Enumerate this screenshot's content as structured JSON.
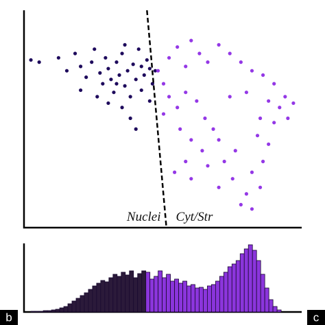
{
  "chart_data": [
    {
      "type": "scatter",
      "xlim": [
        0,
        100
      ],
      "ylim": [
        0,
        100
      ],
      "divider": {
        "x": [
          44,
          51
        ],
        "y": [
          100,
          0
        ]
      },
      "series": [
        {
          "name": "Nuclei",
          "color": "#1e0a5c",
          "x": [
            2,
            5,
            12,
            15,
            18,
            20,
            22,
            24,
            25,
            27,
            28,
            29,
            30,
            31,
            32,
            33,
            34,
            35,
            36,
            37,
            38,
            39,
            40,
            41,
            42,
            43,
            44,
            45,
            46,
            47,
            30,
            35,
            38,
            40,
            26,
            20,
            42,
            36,
            33,
            45
          ],
          "values": [
            77,
            76,
            78,
            72,
            80,
            74,
            69,
            76,
            82,
            71,
            66,
            78,
            73,
            68,
            62,
            76,
            70,
            80,
            65,
            72,
            60,
            75,
            68,
            82,
            63,
            70,
            77,
            58,
            66,
            72,
            57,
            55,
            50,
            45,
            60,
            63,
            74,
            84,
            66,
            73
          ]
        },
        {
          "name": "Cyt/Str",
          "color": "#9438e6",
          "x": [
            48,
            50,
            52,
            55,
            58,
            60,
            63,
            66,
            70,
            74,
            78,
            82,
            86,
            90,
            94,
            97,
            92,
            88,
            85,
            90,
            95,
            84,
            88,
            86,
            82,
            85,
            80,
            78,
            82,
            75,
            72,
            70,
            68,
            65,
            62,
            58,
            55,
            56,
            60,
            64,
            58,
            60,
            54,
            66,
            70,
            76,
            52,
            50,
            74,
            80
          ],
          "values": [
            72,
            66,
            78,
            83,
            74,
            86,
            80,
            76,
            84,
            80,
            76,
            72,
            70,
            66,
            60,
            57,
            55,
            58,
            50,
            48,
            50,
            42,
            38,
            30,
            25,
            18,
            15,
            10,
            8,
            22,
            30,
            40,
            45,
            50,
            58,
            62,
            55,
            45,
            40,
            35,
            30,
            22,
            25,
            28,
            18,
            35,
            60,
            52,
            60,
            62
          ]
        }
      ]
    },
    {
      "type": "histogram",
      "xlim": [
        -1.7,
        66
      ],
      "ylim": [
        0,
        100
      ],
      "bins": [
        0,
        1,
        2,
        3,
        4,
        5,
        6,
        7,
        8,
        9,
        10,
        11,
        12,
        13,
        14,
        15,
        16,
        17,
        18,
        19,
        20,
        21,
        22,
        23,
        24,
        25,
        26,
        27,
        28,
        29,
        30,
        31,
        32,
        33,
        34,
        35,
        36,
        37,
        38,
        39,
        40,
        41,
        42,
        43,
        44,
        45,
        46,
        47,
        48,
        49,
        50,
        51,
        52,
        53,
        54,
        55,
        56,
        57,
        58,
        59,
        60,
        61
      ],
      "counts": [
        1,
        1,
        1,
        2,
        2,
        3,
        4,
        6,
        8,
        12,
        16,
        20,
        24,
        28,
        33,
        38,
        42,
        46,
        44,
        50,
        55,
        52,
        58,
        54,
        60,
        50,
        56,
        60,
        58,
        48,
        52,
        60,
        50,
        55,
        45,
        48,
        42,
        45,
        38,
        40,
        35,
        36,
        33,
        38,
        40,
        45,
        52,
        58,
        66,
        70,
        75,
        85,
        92,
        98,
        90,
        75,
        55,
        35,
        18,
        8,
        3
      ],
      "bar_colors": [
        "#2b1a3a",
        "#2b1a3a",
        "#2b1a3a",
        "#2b1a3a",
        "#2b1a3a",
        "#2b1a3a",
        "#2b1a3a",
        "#2b1a3a",
        "#2b1a3a",
        "#2b1a3a",
        "#2b1a3a",
        "#2b1a3a",
        "#2b1a3a",
        "#2b1a3a",
        "#2b1a3a",
        "#2b1a3a",
        "#2b1a3a",
        "#2b1a3a",
        "#2b1a3a",
        "#2b1a3a",
        "#2b1a3a",
        "#2b1a3a",
        "#2b1a3a",
        "#2b1a3a",
        "#2b1a3a",
        "#2b1a3a",
        "#2b1a3a",
        "#2b1a3a",
        "#8b35dc",
        "#8b35dc",
        "#8b35dc",
        "#8b35dc",
        "#8b35dc",
        "#8b35dc",
        "#8b35dc",
        "#8b35dc",
        "#8b35dc",
        "#8b35dc",
        "#8b35dc",
        "#8b35dc",
        "#8b35dc",
        "#8b35dc",
        "#8b35dc",
        "#8b35dc",
        "#8b35dc",
        "#8b35dc",
        "#8b35dc",
        "#8b35dc",
        "#8b35dc",
        "#8b35dc",
        "#8b35dc",
        "#8b35dc",
        "#8b35dc",
        "#8b35dc",
        "#8b35dc",
        "#8b35dc",
        "#8b35dc",
        "#8b35dc",
        "#8b35dc",
        "#8b35dc",
        "#8b35dc"
      ]
    }
  ],
  "panel_labels": [
    "b",
    "c"
  ]
}
